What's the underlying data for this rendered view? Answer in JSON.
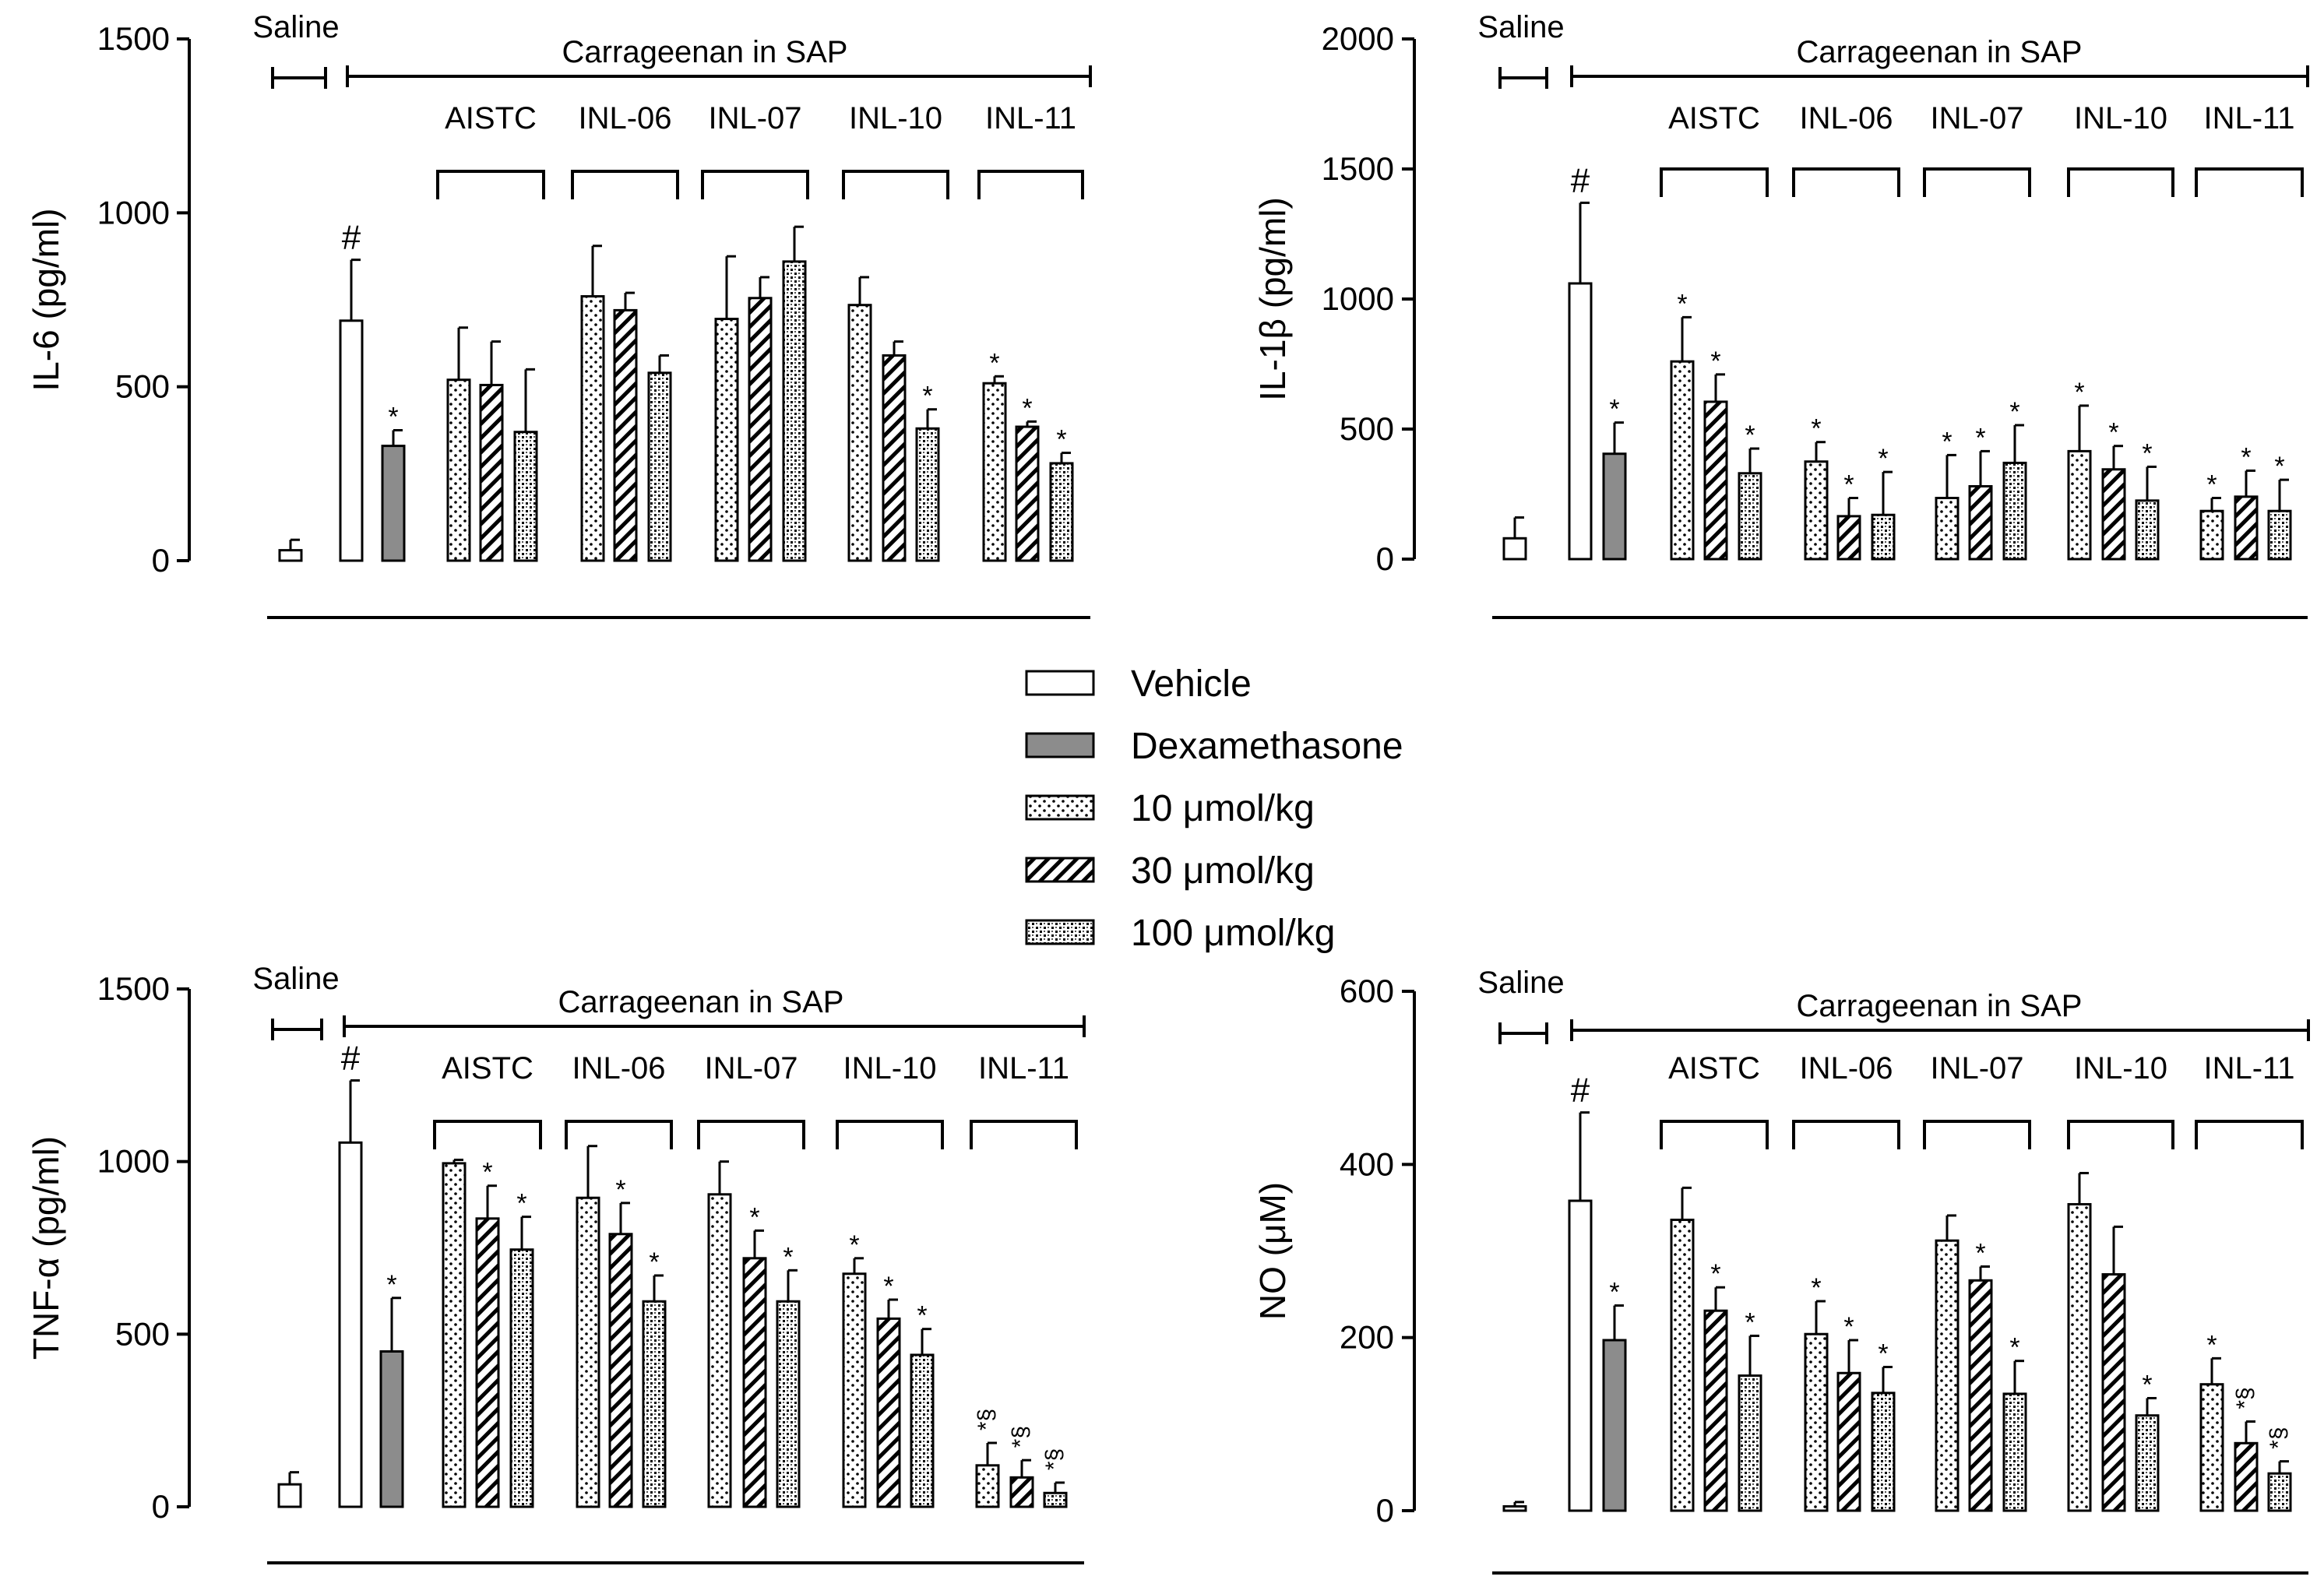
{
  "patterns": {
    "Vehicle": "blank",
    "Dexamethasone": "gray",
    "10": "dots",
    "30": "diag",
    "100": "stipple"
  },
  "colors": {
    "dexamethasone_fill": "#8c8c8c",
    "stroke": "#000000"
  },
  "legend": {
    "items": [
      {
        "key": "Vehicle",
        "label": "Vehicle"
      },
      {
        "key": "Dexamethasone",
        "label": "Dexamethasone"
      },
      {
        "key": "10",
        "label": "10 μmol/kg"
      },
      {
        "key": "30",
        "label": "30 μmol/kg"
      },
      {
        "key": "100",
        "label": "100 μmol/kg"
      }
    ]
  },
  "chart_data": [
    {
      "type": "bar",
      "panel": "top-left",
      "ylabel": "IL-6 (pg/ml)",
      "ylim": [
        0,
        1500
      ],
      "yticks": [
        0,
        500,
        1000,
        1500
      ],
      "saline_label": "Saline",
      "carrageenan_label": "Carrageenan in SAP",
      "groups": [
        {
          "label": "Saline",
          "bars": [
            {
              "series": "Vehicle",
              "value": 30,
              "err": 30,
              "annot": ""
            }
          ]
        },
        {
          "label": "Carrageenan",
          "bars": [
            {
              "series": "Vehicle",
              "value": 690,
              "err": 175,
              "annot": "#"
            },
            {
              "series": "Dexamethasone",
              "value": 330,
              "err": 45,
              "annot": "*"
            }
          ]
        },
        {
          "label": "AISTC",
          "bars": [
            {
              "series": "10",
              "value": 520,
              "err": 150,
              "annot": ""
            },
            {
              "series": "30",
              "value": 505,
              "err": 125,
              "annot": ""
            },
            {
              "series": "100",
              "value": 370,
              "err": 180,
              "annot": ""
            }
          ]
        },
        {
          "label": "INL-06",
          "bars": [
            {
              "series": "10",
              "value": 760,
              "err": 145,
              "annot": ""
            },
            {
              "series": "30",
              "value": 720,
              "err": 50,
              "annot": ""
            },
            {
              "series": "100",
              "value": 540,
              "err": 50,
              "annot": ""
            }
          ]
        },
        {
          "label": "INL-07",
          "bars": [
            {
              "series": "10",
              "value": 695,
              "err": 180,
              "annot": ""
            },
            {
              "series": "30",
              "value": 755,
              "err": 60,
              "annot": ""
            },
            {
              "series": "100",
              "value": 860,
              "err": 100,
              "annot": ""
            }
          ]
        },
        {
          "label": "INL-10",
          "bars": [
            {
              "series": "10",
              "value": 735,
              "err": 80,
              "annot": ""
            },
            {
              "series": "30",
              "value": 590,
              "err": 40,
              "annot": ""
            },
            {
              "series": "100",
              "value": 380,
              "err": 55,
              "annot": "*"
            }
          ]
        },
        {
          "label": "INL-11",
          "bars": [
            {
              "series": "10",
              "value": 510,
              "err": 20,
              "annot": "*"
            },
            {
              "series": "30",
              "value": 385,
              "err": 15,
              "annot": "*"
            },
            {
              "series": "100",
              "value": 280,
              "err": 30,
              "annot": "*"
            }
          ]
        }
      ]
    },
    {
      "type": "bar",
      "panel": "top-right",
      "ylabel": "IL-1β (pg/ml)",
      "ylim": [
        0,
        2000
      ],
      "yticks": [
        0,
        500,
        1000,
        1500,
        2000
      ],
      "saline_label": "Saline",
      "carrageenan_label": "Carrageenan in SAP",
      "groups": [
        {
          "label": "Saline",
          "bars": [
            {
              "series": "Vehicle",
              "value": 80,
              "err": 80,
              "annot": ""
            }
          ]
        },
        {
          "label": "Carrageenan",
          "bars": [
            {
              "series": "Vehicle",
              "value": 1060,
              "err": 310,
              "annot": "#"
            },
            {
              "series": "Dexamethasone",
              "value": 405,
              "err": 120,
              "annot": "*"
            }
          ]
        },
        {
          "label": "AISTC",
          "bars": [
            {
              "series": "10",
              "value": 760,
              "err": 170,
              "annot": "*"
            },
            {
              "series": "30",
              "value": 605,
              "err": 105,
              "annot": "*"
            },
            {
              "series": "100",
              "value": 330,
              "err": 95,
              "annot": "*"
            }
          ]
        },
        {
          "label": "INL-06",
          "bars": [
            {
              "series": "10",
              "value": 375,
              "err": 75,
              "annot": "*"
            },
            {
              "series": "30",
              "value": 165,
              "err": 70,
              "annot": "*"
            },
            {
              "series": "100",
              "value": 170,
              "err": 165,
              "annot": "*"
            }
          ]
        },
        {
          "label": "INL-07",
          "bars": [
            {
              "series": "10",
              "value": 235,
              "err": 165,
              "annot": "*"
            },
            {
              "series": "30",
              "value": 280,
              "err": 135,
              "annot": "*"
            },
            {
              "series": "100",
              "value": 370,
              "err": 145,
              "annot": "*"
            }
          ]
        },
        {
          "label": "INL-10",
          "bars": [
            {
              "series": "10",
              "value": 415,
              "err": 175,
              "annot": "*"
            },
            {
              "series": "30",
              "value": 345,
              "err": 90,
              "annot": "*"
            },
            {
              "series": "100",
              "value": 225,
              "err": 130,
              "annot": "*"
            }
          ]
        },
        {
          "label": "INL-11",
          "bars": [
            {
              "series": "10",
              "value": 185,
              "err": 50,
              "annot": "*"
            },
            {
              "series": "30",
              "value": 240,
              "err": 100,
              "annot": "*"
            },
            {
              "series": "100",
              "value": 185,
              "err": 120,
              "annot": "*"
            }
          ]
        }
      ]
    },
    {
      "type": "bar",
      "panel": "bottom-left",
      "ylabel": "TNF-α (pg/ml)",
      "ylim": [
        0,
        1500
      ],
      "yticks": [
        0,
        500,
        1000,
        1500
      ],
      "saline_label": "Saline",
      "carrageenan_label": "Carrageenan in SAP",
      "groups": [
        {
          "label": "Saline",
          "bars": [
            {
              "series": "Vehicle",
              "value": 65,
              "err": 35,
              "annot": ""
            }
          ]
        },
        {
          "label": "Carrageenan",
          "bars": [
            {
              "series": "Vehicle",
              "value": 1055,
              "err": 180,
              "annot": "#"
            },
            {
              "series": "Dexamethasone",
              "value": 450,
              "err": 155,
              "annot": "*"
            }
          ]
        },
        {
          "label": "AISTC",
          "bars": [
            {
              "series": "10",
              "value": 995,
              "err": 10,
              "annot": ""
            },
            {
              "series": "30",
              "value": 835,
              "err": 95,
              "annot": "*"
            },
            {
              "series": "100",
              "value": 745,
              "err": 95,
              "annot": "*"
            }
          ]
        },
        {
          "label": "INL-06",
          "bars": [
            {
              "series": "10",
              "value": 895,
              "err": 150,
              "annot": ""
            },
            {
              "series": "30",
              "value": 790,
              "err": 90,
              "annot": "*"
            },
            {
              "series": "100",
              "value": 595,
              "err": 75,
              "annot": "*"
            }
          ]
        },
        {
          "label": "INL-07",
          "bars": [
            {
              "series": "10",
              "value": 905,
              "err": 95,
              "annot": ""
            },
            {
              "series": "30",
              "value": 720,
              "err": 80,
              "annot": "*"
            },
            {
              "series": "100",
              "value": 595,
              "err": 90,
              "annot": "*"
            }
          ]
        },
        {
          "label": "INL-10",
          "bars": [
            {
              "series": "10",
              "value": 675,
              "err": 45,
              "annot": "*"
            },
            {
              "series": "30",
              "value": 545,
              "err": 55,
              "annot": "*"
            },
            {
              "series": "100",
              "value": 440,
              "err": 75,
              "annot": "*"
            }
          ]
        },
        {
          "label": "INL-11",
          "bars": [
            {
              "series": "10",
              "value": 120,
              "err": 65,
              "annot": "*§"
            },
            {
              "series": "30",
              "value": 85,
              "err": 50,
              "annot": "*§"
            },
            {
              "series": "100",
              "value": 40,
              "err": 30,
              "annot": "*§"
            }
          ]
        }
      ]
    },
    {
      "type": "bar",
      "panel": "bottom-right",
      "ylabel": "NO (μM)",
      "ylim": [
        0,
        600
      ],
      "yticks": [
        0,
        200,
        400,
        600
      ],
      "saline_label": "Saline",
      "carrageenan_label": "Carrageenan in SAP",
      "groups": [
        {
          "label": "Saline",
          "bars": [
            {
              "series": "Vehicle",
              "value": 5,
              "err": 5,
              "annot": ""
            }
          ]
        },
        {
          "label": "Carrageenan",
          "bars": [
            {
              "series": "Vehicle",
              "value": 358,
              "err": 102,
              "annot": "#"
            },
            {
              "series": "Dexamethasone",
              "value": 197,
              "err": 40,
              "annot": "*"
            }
          ]
        },
        {
          "label": "AISTC",
          "bars": [
            {
              "series": "10",
              "value": 336,
              "err": 37,
              "annot": ""
            },
            {
              "series": "30",
              "value": 231,
              "err": 27,
              "annot": "*"
            },
            {
              "series": "100",
              "value": 156,
              "err": 46,
              "annot": "*"
            }
          ]
        },
        {
          "label": "INL-06",
          "bars": [
            {
              "series": "10",
              "value": 204,
              "err": 38,
              "annot": "*"
            },
            {
              "series": "30",
              "value": 159,
              "err": 38,
              "annot": "*"
            },
            {
              "series": "100",
              "value": 136,
              "err": 30,
              "annot": "*"
            }
          ]
        },
        {
          "label": "INL-07",
          "bars": [
            {
              "series": "10",
              "value": 312,
              "err": 29,
              "annot": ""
            },
            {
              "series": "30",
              "value": 266,
              "err": 16,
              "annot": "*"
            },
            {
              "series": "100",
              "value": 135,
              "err": 38,
              "annot": "*"
            }
          ]
        },
        {
          "label": "INL-10",
          "bars": [
            {
              "series": "10",
              "value": 354,
              "err": 36,
              "annot": ""
            },
            {
              "series": "30",
              "value": 273,
              "err": 55,
              "annot": ""
            },
            {
              "series": "100",
              "value": 110,
              "err": 20,
              "annot": "*"
            }
          ]
        },
        {
          "label": "INL-11",
          "bars": [
            {
              "series": "10",
              "value": 146,
              "err": 30,
              "annot": "*"
            },
            {
              "series": "30",
              "value": 78,
              "err": 25,
              "annot": "*§"
            },
            {
              "series": "100",
              "value": 43,
              "err": 14,
              "annot": "*§"
            }
          ]
        }
      ]
    }
  ]
}
